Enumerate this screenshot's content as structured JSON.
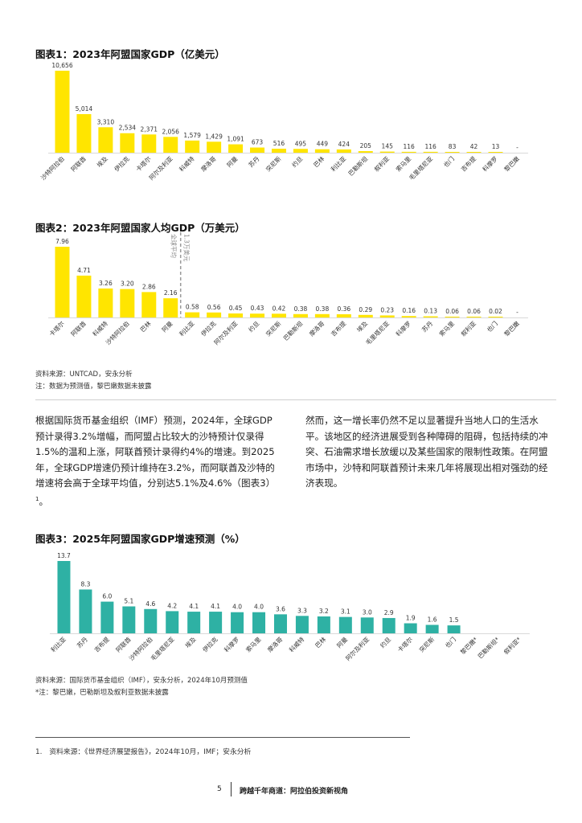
{
  "colors": {
    "yellow": "#FFE500",
    "teal": "#2EB1A4",
    "label": "#333333",
    "dashed": "#9a9a9a"
  },
  "chart1": {
    "title": "图表1：2023年阿盟国家GDP（亿美元）",
    "chart_data": {
      "type": "bar",
      "title": "图表1：2023年阿盟国家GDP（亿美元）",
      "categories": [
        "沙特阿拉伯",
        "阿联酋",
        "埃及",
        "伊拉克",
        "卡塔尔",
        "阿尔及利亚",
        "科威特",
        "摩洛哥",
        "阿曼",
        "苏丹",
        "突尼斯",
        "约旦",
        "巴林",
        "利比亚",
        "巴勒斯坦",
        "叙利亚",
        "索马里",
        "毛里塔尼亚",
        "也门",
        "吉布提",
        "科摩罗",
        "黎巴嫩"
      ],
      "values": [
        10656,
        5014,
        3310,
        2534,
        2371,
        2056,
        1579,
        1429,
        1091,
        673,
        516,
        495,
        449,
        424,
        205,
        145,
        116,
        116,
        83,
        42,
        13,
        null
      ],
      "value_labels": [
        "10,656",
        "5,014",
        "3,310",
        "2,534",
        "2,371",
        "2,056",
        "1,579",
        "1,429",
        "1,091",
        "673",
        "516",
        "495",
        "449",
        "424",
        "205",
        "145",
        "116",
        "116",
        "83",
        "42",
        "13",
        "-"
      ],
      "ylim": [
        0,
        10656
      ]
    }
  },
  "chart2": {
    "title": "图表2：2023年阿盟国家人均GDP（万美元）",
    "reference_label": "全球平均",
    "reference_value_label": "1.3万美元",
    "chart_data": {
      "type": "bar",
      "title": "图表2：2023年阿盟国家人均GDP（万美元）",
      "categories": [
        "卡塔尔",
        "阿联酋",
        "科威特",
        "沙特阿拉伯",
        "巴林",
        "阿曼",
        "利比亚",
        "伊拉克",
        "阿尔及利亚",
        "约旦",
        "突尼斯",
        "巴勒斯坦",
        "摩洛哥",
        "吉布提",
        "埃及",
        "毛里塔尼亚",
        "科摩罗",
        "苏丹",
        "索马里",
        "叙利亚",
        "也门",
        "黎巴嫩"
      ],
      "values": [
        7.96,
        4.71,
        3.26,
        3.2,
        2.86,
        2.16,
        0.58,
        0.56,
        0.45,
        0.43,
        0.42,
        0.38,
        0.38,
        0.36,
        0.29,
        0.23,
        0.16,
        0.13,
        0.06,
        0.06,
        0.02,
        null
      ],
      "value_labels": [
        "7.96",
        "4.71",
        "3.26",
        "3.20",
        "2.86",
        "2.16",
        "0.58",
        "0.56",
        "0.45",
        "0.43",
        "0.42",
        "0.38",
        "0.38",
        "0.36",
        "0.29",
        "0.23",
        "0.16",
        "0.13",
        "0.06",
        "0.06",
        "0.02",
        "-"
      ],
      "reference_line": {
        "label": "全球平均 1.3万美元",
        "after_index": 5
      },
      "ylim": [
        0,
        7.96
      ]
    },
    "source": "资料来源：UNTCAD，安永分析",
    "note": "注：数据为预测值，黎巴嫩数据未披露"
  },
  "body": {
    "left_paragraph": "根据国际货币基金组织（IMF）预测，2024年，全球GDP预计录得3.2%增幅，而阿盟占比较大的沙特预计仅录得1.5%的温和上涨，阿联酋预计录得约4%的增速。到2025年，全球GDP增速仍预计维持在3.2%，而阿联酋及沙特的增速将会高于全球平均值，分别达5.1%及4.6%（图表3）",
    "left_superscript": "1",
    "left_end": "。",
    "right_paragraph": "然而，这一增长率仍然不足以显著提升当地人口的生活水平。该地区的经济进展受到各种障碍的阻碍，包括持续的冲突、石油需求增长放缓以及某些国家的限制性政策。在阿盟市场中，沙特和阿联酋预计未来几年将展现出相对强劲的经济表现。"
  },
  "chart3": {
    "title": "图表3：2025年阿盟国家GDP增速预测（%）",
    "chart_data": {
      "type": "bar",
      "title": "图表3：2025年阿盟国家GDP增速预测（%）",
      "categories": [
        "利比亚",
        "苏丹",
        "吉布提",
        "阿联酋",
        "沙特阿拉伯",
        "毛里塔尼亚",
        "埃及",
        "伊拉克",
        "科摩罗",
        "索马里",
        "摩洛哥",
        "科威特",
        "巴林",
        "阿曼",
        "阿尔及利亚",
        "约旦",
        "卡塔尔",
        "突尼斯",
        "也门",
        "黎巴嫩*",
        "巴勒斯坦*",
        "叙利亚*"
      ],
      "values": [
        13.7,
        8.3,
        6.0,
        5.1,
        4.6,
        4.2,
        4.1,
        4.1,
        4.0,
        4.0,
        3.6,
        3.3,
        3.2,
        3.1,
        3.0,
        2.9,
        1.9,
        1.6,
        1.5,
        null,
        null,
        null
      ],
      "value_labels": [
        "13.7",
        "8.3",
        "6.0",
        "5.1",
        "4.6",
        "4.2",
        "4.1",
        "4.1",
        "4.0",
        "4.0",
        "3.6",
        "3.3",
        "3.2",
        "3.1",
        "3.0",
        "2.9",
        "1.9",
        "1.6",
        "1.5",
        "",
        "",
        ""
      ],
      "ylim": [
        0,
        13.7
      ]
    },
    "source": "资料来源：国际货币基金组织（IMF），安永分析，2024年10月预测值",
    "note": "*注：黎巴嫩，巴勒斯坦及叙利亚数据未披露"
  },
  "footnote": "1.　资料来源：《世界经济展望报告》，2024年10月，IMF；安永分析",
  "footer": {
    "page_number": "5",
    "title": "跨越千年商道：阿拉伯投资新视角"
  }
}
